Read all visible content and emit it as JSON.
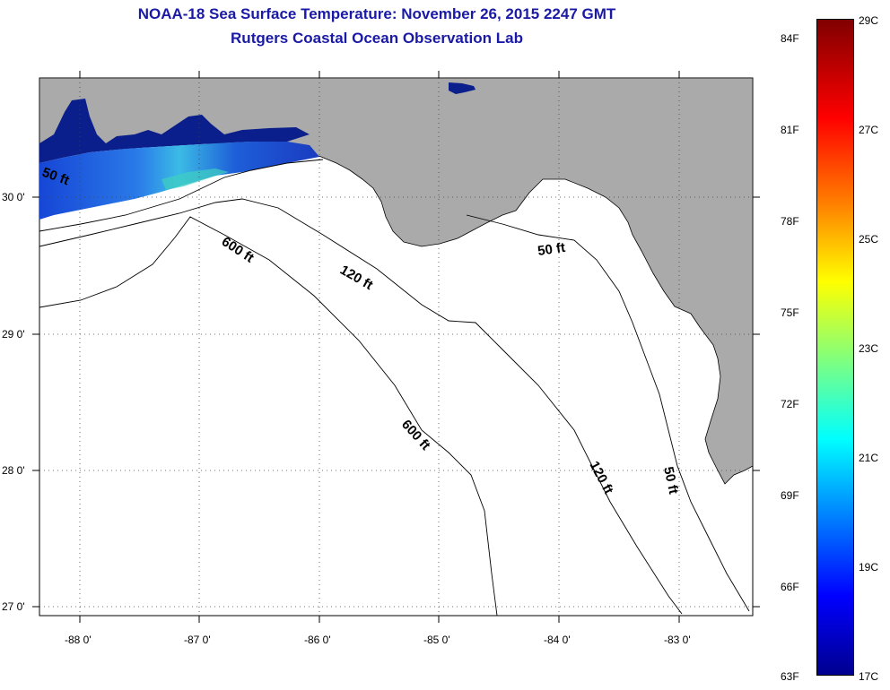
{
  "header": {
    "title": "NOAA-18 Sea Surface Temperature:  November 26, 2015 2247 GMT",
    "subtitle": "Rutgers Coastal Ocean Observation Lab"
  },
  "map": {
    "lon_labels": [
      "-88 0'",
      "-87 0'",
      "-86 0'",
      "-85 0'",
      "-84 0'",
      "-83 0'"
    ],
    "lat_labels": [
      "30 0'",
      "29 0'",
      "28 0'",
      "27 0'"
    ],
    "contour_labels": {
      "c600_west": "600 ft",
      "c120_west": "120 ft",
      "c50_north": "50 ft",
      "c50_nw": "50 ft",
      "c600_south": "600 ft",
      "c120_south": "120 ft",
      "c50_south": "50 ft"
    },
    "colors": {
      "land": "#aaaaaa",
      "water": "#ffffff",
      "cold_sst": "#0a1e8c",
      "title": "#1a1aa6"
    }
  },
  "colorbar": {
    "fahrenheit": [
      "84F",
      "81F",
      "78F",
      "75F",
      "72F",
      "69F",
      "66F",
      "63F"
    ],
    "celsius": [
      "29C",
      "27C",
      "25C",
      "23C",
      "21C",
      "19C",
      "17C"
    ]
  }
}
